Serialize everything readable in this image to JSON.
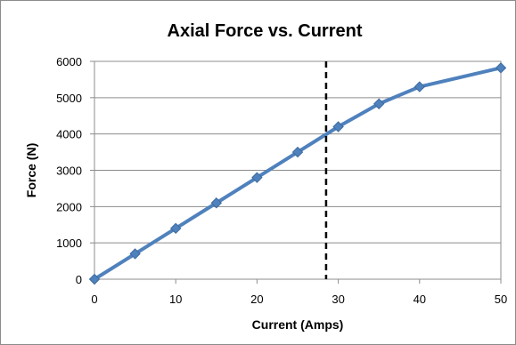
{
  "chart_data": {
    "type": "line",
    "title": "Axial Force vs. Current",
    "xlabel": "Current (Amps)",
    "ylabel": "Force (N)",
    "xlim": [
      0,
      50
    ],
    "ylim": [
      0,
      6000
    ],
    "xticks": [
      0,
      10,
      20,
      30,
      40,
      50
    ],
    "yticks": [
      0,
      1000,
      2000,
      3000,
      4000,
      5000,
      6000
    ],
    "grid": "horizontal",
    "legend": "none",
    "series": [
      {
        "x": [
          0,
          5,
          10,
          15,
          20,
          25,
          30,
          35,
          40,
          50
        ],
        "y": [
          0,
          700,
          1400,
          2100,
          2800,
          3500,
          4200,
          4830,
          5300,
          5820
        ],
        "color": "#4f81bd",
        "marker": "diamond"
      }
    ],
    "vertical_line": {
      "x": 28.5,
      "style": "dashed",
      "color": "#000000"
    }
  }
}
